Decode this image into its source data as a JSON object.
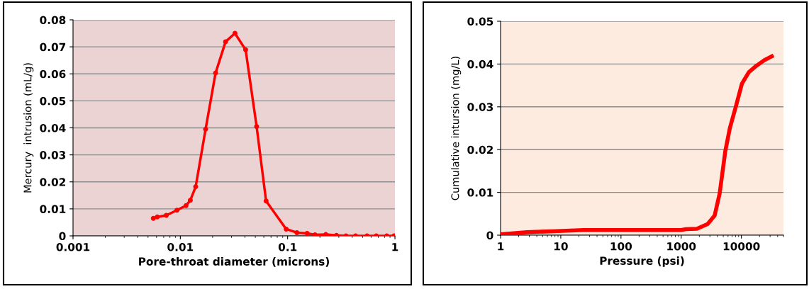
{
  "chart_data": [
    {
      "type": "line",
      "xlabel": "Pore-throat diameter (microns)",
      "ylabel": "Mercury  intrusion (mL/g)",
      "log": "x",
      "grid": "y",
      "marker": "circle",
      "line_style": "solid",
      "xlim": [
        0.001,
        1
      ],
      "xticks": [
        0.001,
        0.01,
        0.1,
        1
      ],
      "ylim": [
        0,
        0.08
      ],
      "yticks": [
        0,
        0.01,
        0.02,
        0.03,
        0.04,
        0.05,
        0.06,
        0.07,
        0.08
      ],
      "series": [
        {
          "color": "#ff0000",
          "x": [
            0.0056,
            0.0061,
            0.0074,
            0.0093,
            0.0113,
            0.0124,
            0.0139,
            0.0172,
            0.0213,
            0.0264,
            0.0323,
            0.0406,
            0.0514,
            0.063,
            0.097,
            0.122,
            0.152,
            0.18,
            0.227,
            0.285,
            0.35,
            0.43,
            0.55,
            0.67,
            0.84,
            0.98
          ],
          "values": [
            0.0065,
            0.007,
            0.0076,
            0.0095,
            0.0112,
            0.0132,
            0.0182,
            0.0395,
            0.0603,
            0.0719,
            0.075,
            0.0689,
            0.0405,
            0.0129,
            0.0025,
            0.0012,
            0.0009,
            0.0004,
            0.0005,
            0.0002,
            0,
            0,
            0,
            0,
            0,
            0
          ]
        }
      ]
    },
    {
      "type": "line",
      "xlabel": "Pressure (psi)",
      "ylabel": "Cumulative intursion (mg/L)",
      "log": "x",
      "grid": "y",
      "marker": "none",
      "line_style": "solid",
      "xlim": [
        1,
        50000
      ],
      "xticks": [
        1,
        10,
        100,
        1000,
        10000
      ],
      "ylim": [
        0,
        0.05
      ],
      "yticks": [
        0,
        0.01,
        0.02,
        0.03,
        0.04,
        0.05
      ],
      "series": [
        {
          "color": "#ff0000",
          "x": [
            1,
            2.75,
            7.4,
            24,
            1000,
            1200,
            1820,
            2750,
            3600,
            4350,
            5400,
            6450,
            8100,
            10200,
            13300,
            17400,
            24000,
            32000
          ],
          "values": [
            0.0002,
            0.0007,
            0.0009,
            0.0012,
            0.0012,
            0.0014,
            0.0015,
            0.0026,
            0.0046,
            0.0097,
            0.0196,
            0.0251,
            0.0301,
            0.0354,
            0.0381,
            0.0395,
            0.0409,
            0.0418
          ]
        }
      ]
    }
  ]
}
